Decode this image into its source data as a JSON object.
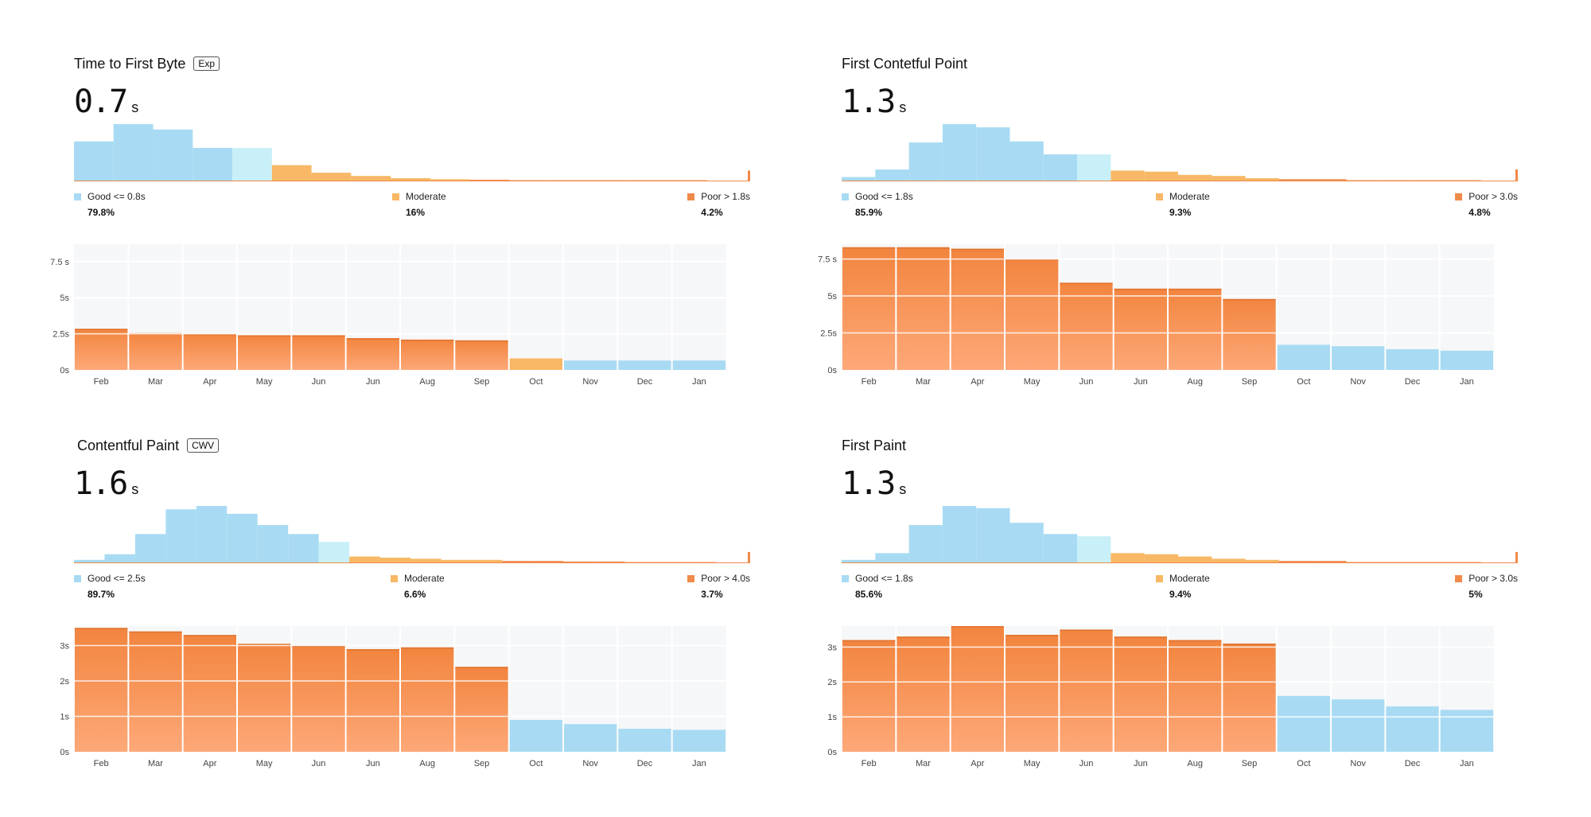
{
  "colors": {
    "good": "#a8dbf3",
    "good_light": "#c9f0f8",
    "moderate": "#f8b866",
    "poor": "#f08a4a",
    "bar_top": "#f2853f",
    "bar_bottom": "#fda878",
    "grid_bg": "#f6f7f9"
  },
  "chart_data": [
    {
      "type": "bar",
      "title": "Time to First Byte",
      "badge": "Exp",
      "value": "0.7",
      "unit": "s",
      "histogram": {
        "good": [
          3.7,
          5.3,
          4.8,
          3.1
        ],
        "good_light": [
          3.1
        ],
        "moderate": [
          1.5,
          0.8,
          0.5,
          0.3,
          0.2
        ],
        "poor": [
          0.15,
          0.1,
          0.1,
          0.05,
          0.05,
          0.05,
          1.0
        ]
      },
      "legend": [
        {
          "label": "Good <= 0.8s",
          "pct": "79.8%",
          "status": "good"
        },
        {
          "label": "Moderate",
          "pct": "16%",
          "status": "moderate"
        },
        {
          "label": "Poor > 1.8s",
          "pct": "4.2%",
          "status": "poor"
        }
      ],
      "categories": [
        "Feb",
        "Mar",
        "Apr",
        "May",
        "Jun",
        "Jun",
        "Aug",
        "Sep",
        "Oct",
        "Nov",
        "Dec",
        "Jan"
      ],
      "values": [
        2.85,
        2.55,
        2.5,
        2.4,
        2.4,
        2.2,
        2.1,
        2.05,
        0.8,
        0.65,
        0.65,
        0.65
      ],
      "status": [
        "poor",
        "poor",
        "poor",
        "poor",
        "poor",
        "poor",
        "poor",
        "poor",
        "moderate",
        "good",
        "good",
        "good"
      ],
      "yticks": [
        "0s",
        "2.5s",
        "5s",
        "7.5 s"
      ],
      "ytick_values": [
        0,
        2.5,
        5,
        7.5
      ],
      "ylim": [
        0,
        8.7
      ]
    },
    {
      "type": "bar",
      "title": "First Contetful Point",
      "badge": "",
      "value": "1.3",
      "unit": "s",
      "histogram": {
        "good": [
          0.4,
          1.1,
          3.6,
          5.3,
          5.0,
          3.7,
          2.5
        ],
        "good_light": [
          2.5
        ],
        "moderate": [
          1.0,
          0.9,
          0.6,
          0.5,
          0.3
        ],
        "poor": [
          0.2,
          0.2,
          0.1,
          0.1,
          0.05,
          0.05,
          1.1
        ]
      },
      "legend": [
        {
          "label": "Good <= 1.8s",
          "pct": "85.9%",
          "status": "good"
        },
        {
          "label": "Moderate",
          "pct": "9.3%",
          "status": "moderate"
        },
        {
          "label": "Poor > 3.0s",
          "pct": "4.8%",
          "status": "poor"
        }
      ],
      "categories": [
        "Feb",
        "Mar",
        "Apr",
        "May",
        "Jun",
        "Jun",
        "Aug",
        "Sep",
        "Oct",
        "Nov",
        "Dec",
        "Jan"
      ],
      "values": [
        8.3,
        8.3,
        8.2,
        7.5,
        5.9,
        5.5,
        5.5,
        4.8,
        1.7,
        1.6,
        1.4,
        1.3
      ],
      "status": [
        "poor",
        "poor",
        "poor",
        "poor",
        "poor",
        "poor",
        "poor",
        "poor",
        "good",
        "good",
        "good",
        "good"
      ],
      "yticks": [
        "0s",
        "2.5s",
        "5s",
        "7.5 s"
      ],
      "ytick_values": [
        0,
        2.5,
        5,
        7.5
      ],
      "ylim": [
        0,
        8.5
      ]
    },
    {
      "type": "bar",
      "title": "Contentful Paint",
      "badge": "CWV",
      "value": "1.6",
      "unit": "s",
      "histogram": {
        "good": [
          0.3,
          0.8,
          2.6,
          4.8,
          5.1,
          4.4,
          3.4,
          2.6
        ],
        "good_light": [
          1.9
        ],
        "moderate": [
          0.6,
          0.5,
          0.4,
          0.3,
          0.3
        ],
        "poor": [
          0.2,
          0.2,
          0.15,
          0.15,
          0.1,
          0.05,
          0.05,
          1.0
        ]
      },
      "legend": [
        {
          "label": "Good <= 2.5s",
          "pct": "89.7%",
          "status": "good"
        },
        {
          "label": "Moderate",
          "pct": "6.6%",
          "status": "moderate"
        },
        {
          "label": "Poor > 4.0s",
          "pct": "3.7%",
          "status": "poor"
        }
      ],
      "categories": [
        "Feb",
        "Mar",
        "Apr",
        "May",
        "Jun",
        "Jun",
        "Aug",
        "Sep",
        "Oct",
        "Nov",
        "Dec",
        "Jan"
      ],
      "values": [
        3.5,
        3.4,
        3.3,
        3.05,
        3.0,
        2.9,
        2.95,
        2.4,
        0.9,
        0.78,
        0.65,
        0.62
      ],
      "status": [
        "poor",
        "poor",
        "poor",
        "poor",
        "poor",
        "poor",
        "poor",
        "poor",
        "good",
        "good",
        "good",
        "good"
      ],
      "yticks": [
        "0s",
        "1s",
        "2s",
        "3s"
      ],
      "ytick_values": [
        0,
        1,
        2,
        3
      ],
      "ylim": [
        0,
        3.55
      ]
    },
    {
      "type": "bar",
      "title": "First Paint",
      "badge": "",
      "value": "1.3",
      "unit": "s",
      "histogram": {
        "good": [
          0.3,
          0.9,
          3.4,
          5.1,
          4.9,
          3.6,
          2.6
        ],
        "good_light": [
          2.4
        ],
        "moderate": [
          0.9,
          0.8,
          0.6,
          0.4,
          0.3
        ],
        "poor": [
          0.2,
          0.2,
          0.1,
          0.1,
          0.05,
          0.05,
          1.0
        ]
      },
      "legend": [
        {
          "label": "Good <= 1.8s",
          "pct": "85.6%",
          "status": "good"
        },
        {
          "label": "Moderate",
          "pct": "9.4%",
          "status": "moderate"
        },
        {
          "label": "Poor > 3.0s",
          "pct": "5%",
          "status": "poor"
        }
      ],
      "categories": [
        "Feb",
        "Mar",
        "Apr",
        "May",
        "Jun",
        "Jun",
        "Aug",
        "Sep",
        "Oct",
        "Nov",
        "Dec",
        "Jan"
      ],
      "values": [
        3.2,
        3.3,
        3.6,
        3.35,
        3.5,
        3.3,
        3.2,
        3.1,
        1.6,
        1.5,
        1.3,
        1.2
      ],
      "status": [
        "poor",
        "poor",
        "poor",
        "poor",
        "poor",
        "poor",
        "poor",
        "poor",
        "good",
        "good",
        "good",
        "good"
      ],
      "yticks": [
        "0s",
        "1s",
        "2s",
        "3s"
      ],
      "ytick_values": [
        0,
        1,
        2,
        3
      ],
      "ylim": [
        0,
        3.6
      ]
    }
  ]
}
